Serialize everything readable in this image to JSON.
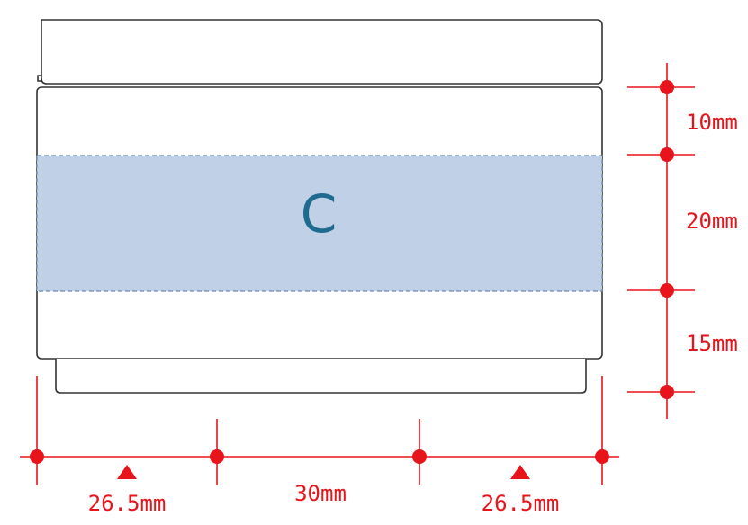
{
  "diagram": {
    "zone_letter": "C",
    "vertical_dims": [
      "10mm",
      "20mm",
      "15mm"
    ],
    "horizontal_dims": {
      "left": "26.5mm",
      "center": "30mm",
      "right": "26.5mm"
    },
    "colors": {
      "dimension": "#e8141b",
      "zone_fill": "#c0d0e6",
      "zone_border": "#6a89b8",
      "zone_text": "#1f6a8f",
      "outline": "#333333"
    }
  }
}
